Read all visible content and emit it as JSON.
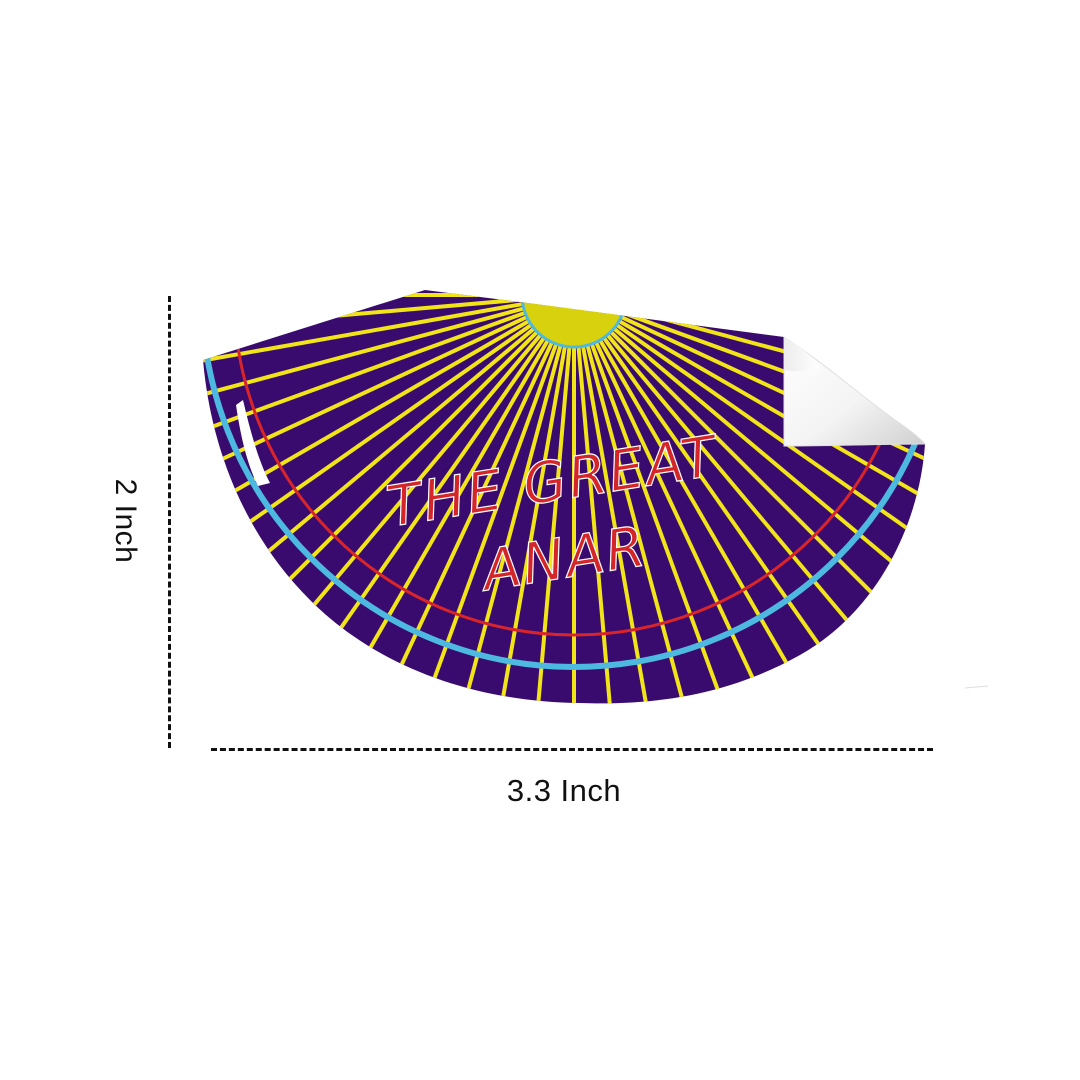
{
  "sticker": {
    "text_line1": "THE GREAT",
    "text_line2": "ANAR",
    "colors": {
      "background": "#3a0b6e",
      "rays": "#f1e418",
      "sun": "#d8d20e",
      "outer_ring": "#4db8e0",
      "inner_ring": "#d9252a",
      "text": "#d42528",
      "peel": "#ffffff"
    }
  },
  "dimensions": {
    "height_label": "2 Inch",
    "width_label": "3.3 Inch"
  }
}
